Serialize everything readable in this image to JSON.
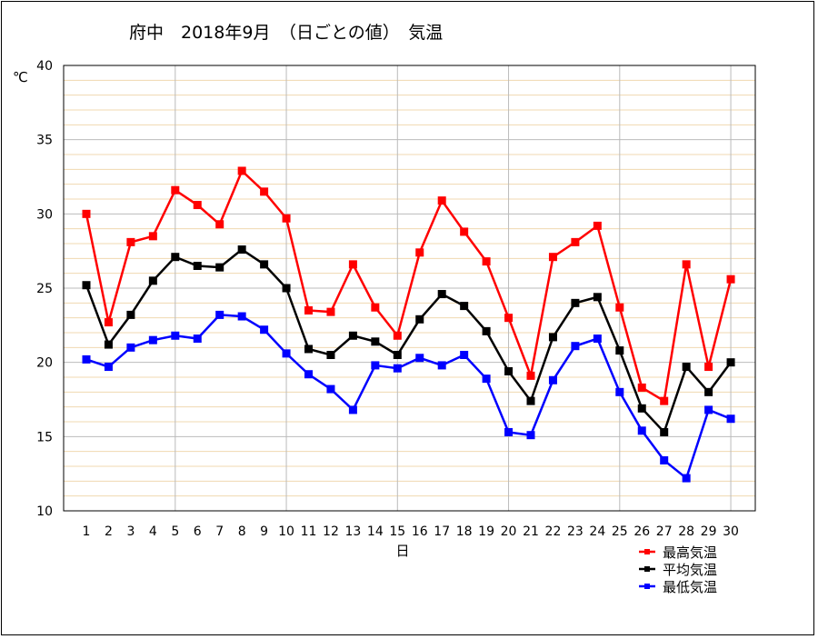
{
  "chart_data": {
    "type": "line",
    "title": "府中　2018年9月　（日ごとの値）　気温",
    "xlabel": "日",
    "ylabel": "℃",
    "ylim": [
      10,
      40
    ],
    "yticks": [
      10,
      15,
      20,
      25,
      30,
      35,
      40
    ],
    "grid": true,
    "legend_position": "bottom-right",
    "categories": [
      "1",
      "2",
      "3",
      "4",
      "5",
      "6",
      "7",
      "8",
      "9",
      "10",
      "11",
      "12",
      "13",
      "14",
      "15",
      "16",
      "17",
      "18",
      "19",
      "20",
      "21",
      "22",
      "23",
      "24",
      "25",
      "26",
      "27",
      "28",
      "29",
      "30"
    ],
    "series": [
      {
        "name": "最高気温",
        "color": "#ff0000",
        "values": [
          30.0,
          22.7,
          28.1,
          28.5,
          31.6,
          30.6,
          29.3,
          32.9,
          31.5,
          29.7,
          23.5,
          23.4,
          26.6,
          23.7,
          21.8,
          27.4,
          30.9,
          28.8,
          26.8,
          23.0,
          19.1,
          27.1,
          28.1,
          29.2,
          23.7,
          18.3,
          17.4,
          26.6,
          19.7,
          25.6
        ]
      },
      {
        "name": "平均気温",
        "color": "#000000",
        "values": [
          25.2,
          21.2,
          23.2,
          25.5,
          27.1,
          26.5,
          26.4,
          27.6,
          26.6,
          25.0,
          20.9,
          20.5,
          21.8,
          21.4,
          20.5,
          22.9,
          24.6,
          23.8,
          22.1,
          19.4,
          17.4,
          21.7,
          24.0,
          24.4,
          20.8,
          16.9,
          15.3,
          19.7,
          18.0,
          20.0
        ]
      },
      {
        "name": "最低気温",
        "color": "#0000ff",
        "values": [
          20.2,
          19.7,
          21.0,
          21.5,
          21.8,
          21.6,
          23.2,
          23.1,
          22.2,
          20.6,
          19.2,
          18.2,
          16.8,
          19.8,
          19.6,
          20.3,
          19.8,
          20.5,
          18.9,
          15.3,
          15.1,
          18.8,
          21.1,
          21.6,
          18.0,
          15.4,
          13.4,
          12.2,
          16.8,
          16.2
        ]
      }
    ]
  },
  "colors": {
    "minor_grid": "#f0d8b0",
    "major_grid": "#bbbbbb"
  }
}
